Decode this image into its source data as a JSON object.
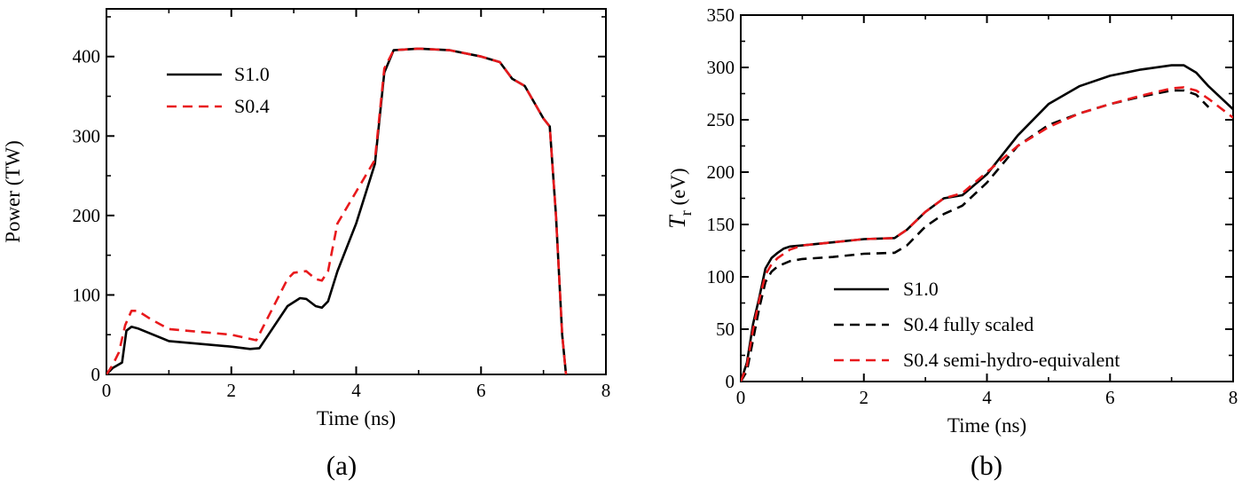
{
  "chart_data": [
    {
      "type": "line",
      "panel_label": "(a)",
      "xlabel": "Time (ns)",
      "ylabel": "Power (TW)",
      "ylabel_main": "Power (TW)",
      "ylabel_sub": "",
      "xlim": [
        0,
        8
      ],
      "ylim": [
        0,
        460
      ],
      "xticks": [
        0,
        2,
        4,
        6,
        8
      ],
      "yticks": [
        0,
        100,
        200,
        300,
        400
      ],
      "minor_x": 1,
      "minor_y": 50,
      "grid": false,
      "legend_position": "top-left",
      "series": [
        {
          "name": "S1.0",
          "color": "#000000",
          "dash": "solid",
          "x": [
            0,
            0.1,
            0.25,
            0.32,
            0.4,
            0.5,
            1.0,
            2.0,
            2.3,
            2.45,
            2.9,
            3.1,
            3.2,
            3.35,
            3.45,
            3.55,
            3.7,
            4.0,
            4.3,
            4.45,
            4.6,
            5.0,
            5.5,
            6.0,
            6.3,
            6.5,
            6.7,
            7.0,
            7.1,
            7.2,
            7.3,
            7.36
          ],
          "y": [
            0,
            8,
            15,
            55,
            60,
            58,
            42,
            35,
            32,
            33,
            86,
            96,
            95,
            86,
            84,
            92,
            130,
            190,
            265,
            380,
            408,
            410,
            408,
            400,
            393,
            372,
            363,
            322,
            312,
            200,
            50,
            0
          ]
        },
        {
          "name": "S0.4",
          "color": "#e8191c",
          "dash": "dashed",
          "x": [
            0,
            0.1,
            0.2,
            0.3,
            0.4,
            0.5,
            0.7,
            1.0,
            2.0,
            2.4,
            2.9,
            3.0,
            3.2,
            3.35,
            3.45,
            3.55,
            3.7,
            4.0,
            4.3,
            4.45,
            4.6,
            5.0,
            5.5,
            6.0,
            6.3,
            6.5,
            6.7,
            7.0,
            7.1,
            7.2,
            7.3,
            7.36
          ],
          "y": [
            0,
            12,
            28,
            62,
            80,
            80,
            70,
            57,
            50,
            43,
            120,
            128,
            130,
            120,
            118,
            130,
            190,
            230,
            270,
            385,
            408,
            410,
            408,
            400,
            393,
            372,
            363,
            322,
            312,
            200,
            50,
            0
          ]
        }
      ]
    },
    {
      "type": "line",
      "panel_label": "(b)",
      "xlabel": "Time (ns)",
      "ylabel": "Tr (eV)",
      "ylabel_main": "T",
      "ylabel_sub": "r",
      "ylabel_rest": " (eV)",
      "xlim": [
        0,
        8
      ],
      "ylim": [
        0,
        350
      ],
      "xticks": [
        0,
        2,
        4,
        6,
        8
      ],
      "yticks": [
        0,
        50,
        100,
        150,
        200,
        250,
        300,
        350
      ],
      "minor_x": 1,
      "minor_y": 25,
      "grid": false,
      "legend_position": "bottom-right",
      "series": [
        {
          "name": "S1.0",
          "color": "#000000",
          "dash": "solid",
          "x": [
            0,
            0.1,
            0.2,
            0.3,
            0.4,
            0.5,
            0.6,
            0.7,
            0.8,
            1.0,
            1.5,
            2.0,
            2.5,
            2.7,
            3.0,
            3.3,
            3.6,
            4.0,
            4.5,
            5.0,
            5.5,
            6.0,
            6.5,
            7.0,
            7.2,
            7.4,
            7.6,
            8.0
          ],
          "y": [
            0,
            18,
            55,
            80,
            108,
            118,
            123,
            127,
            129,
            130,
            133,
            136,
            137,
            145,
            162,
            175,
            178,
            198,
            235,
            265,
            282,
            292,
            298,
            302,
            302,
            295,
            282,
            260
          ]
        },
        {
          "name": "S0.4 fully scaled",
          "color": "#000000",
          "dash": "dashed",
          "x": [
            0,
            0.1,
            0.2,
            0.3,
            0.4,
            0.5,
            0.6,
            0.8,
            1.0,
            1.5,
            2.0,
            2.5,
            2.7,
            3.0,
            3.3,
            3.6,
            4.0,
            4.5,
            5.0,
            5.5,
            6.0,
            6.5,
            7.0,
            7.2,
            7.4,
            7.6
          ],
          "y": [
            0,
            10,
            40,
            70,
            95,
            105,
            110,
            115,
            117,
            119,
            122,
            123,
            130,
            148,
            160,
            168,
            190,
            225,
            245,
            256,
            265,
            272,
            278,
            278,
            274,
            262
          ]
        },
        {
          "name": "S0.4 semi-hydro-equivalent",
          "color": "#e8191c",
          "dash": "dashed",
          "x": [
            0,
            0.1,
            0.2,
            0.3,
            0.4,
            0.5,
            0.6,
            0.8,
            1.0,
            1.5,
            2.0,
            2.5,
            2.7,
            3.0,
            3.3,
            3.6,
            4.0,
            4.5,
            5.0,
            5.5,
            6.0,
            6.5,
            7.0,
            7.2,
            7.4,
            7.6,
            8.0
          ],
          "y": [
            0,
            15,
            50,
            78,
            102,
            112,
            118,
            126,
            130,
            133,
            136,
            137,
            145,
            162,
            175,
            180,
            200,
            225,
            243,
            256,
            265,
            273,
            280,
            281,
            278,
            270,
            252
          ]
        }
      ]
    }
  ]
}
